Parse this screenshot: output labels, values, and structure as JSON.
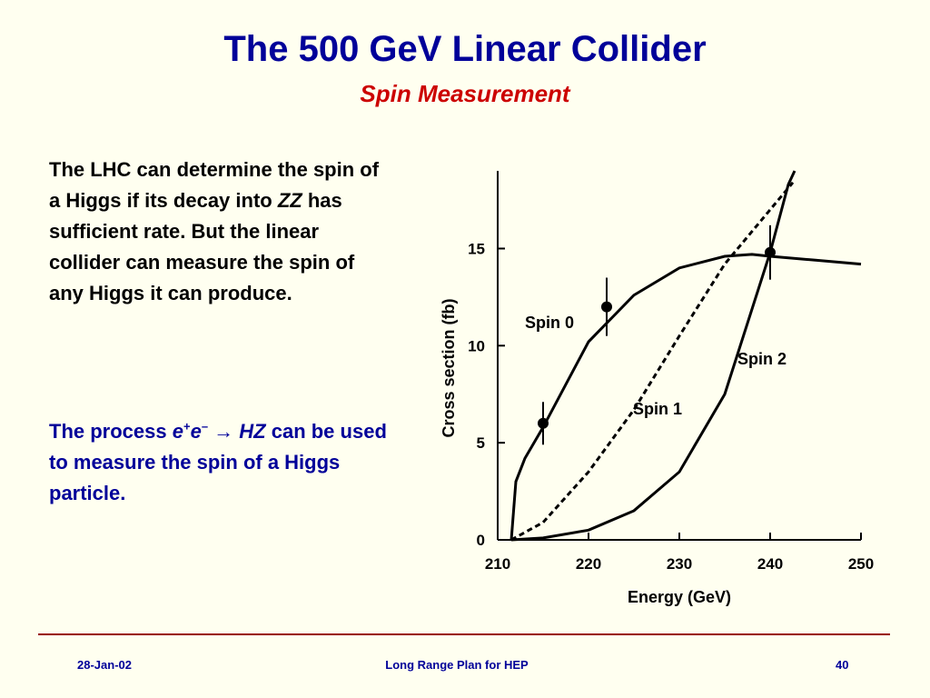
{
  "header": {
    "title": "The 500 GeV Linear Collider",
    "subtitle": "Spin Measurement"
  },
  "body": {
    "paragraph_1": [
      "The LHC can determine the spin of a Higgs if its decay into ",
      "ZZ",
      " has sufficient rate. But the linear collider can measure the spin of any Higgs it can produce."
    ],
    "paragraph_2": [
      "The process ",
      "e",
      "+",
      "e",
      "–",
      " → ",
      "HZ",
      " can be used to measure the spin of a Higgs particle."
    ]
  },
  "chart_data": {
    "type": "line",
    "xlabel": "Energy  (GeV)",
    "ylabel": "Cross section  (fb)",
    "xlim": [
      210,
      250
    ],
    "ylim": [
      0,
      19
    ],
    "xticks": [
      210,
      220,
      230,
      240,
      250
    ],
    "yticks": [
      0,
      5,
      10,
      15
    ],
    "series": [
      {
        "name": "Spin 0",
        "color": "#000000",
        "dashed": false,
        "x": [
          211.5,
          212,
          213,
          215,
          220,
          225,
          230,
          235,
          238,
          240,
          245,
          250
        ],
        "values": [
          0,
          3.0,
          4.2,
          5.8,
          10.2,
          12.6,
          14.0,
          14.6,
          14.7,
          14.6,
          14.4,
          14.2
        ]
      },
      {
        "name": "Spin 1",
        "color": "#000000",
        "dashed": true,
        "x": [
          211.5,
          215,
          220,
          225,
          230,
          235,
          240,
          242.5
        ],
        "values": [
          0,
          0.9,
          3.5,
          6.7,
          10.5,
          14.2,
          17.0,
          18.4
        ]
      },
      {
        "name": "Spin 2",
        "color": "#000000",
        "dashed": false,
        "x": [
          211.5,
          215,
          220,
          225,
          230,
          235,
          240,
          242,
          242.7
        ],
        "values": [
          0,
          0.1,
          0.5,
          1.5,
          3.5,
          7.5,
          14.8,
          18.3,
          19.0
        ]
      }
    ],
    "measurements": {
      "x": [
        215,
        222,
        240
      ],
      "values": [
        6.0,
        12.0,
        14.8
      ],
      "errors": [
        1.1,
        1.5,
        1.4
      ]
    }
  },
  "footer": {
    "date": "28-Jan-02",
    "center": "Long Range Plan for HEP",
    "page": "40"
  }
}
